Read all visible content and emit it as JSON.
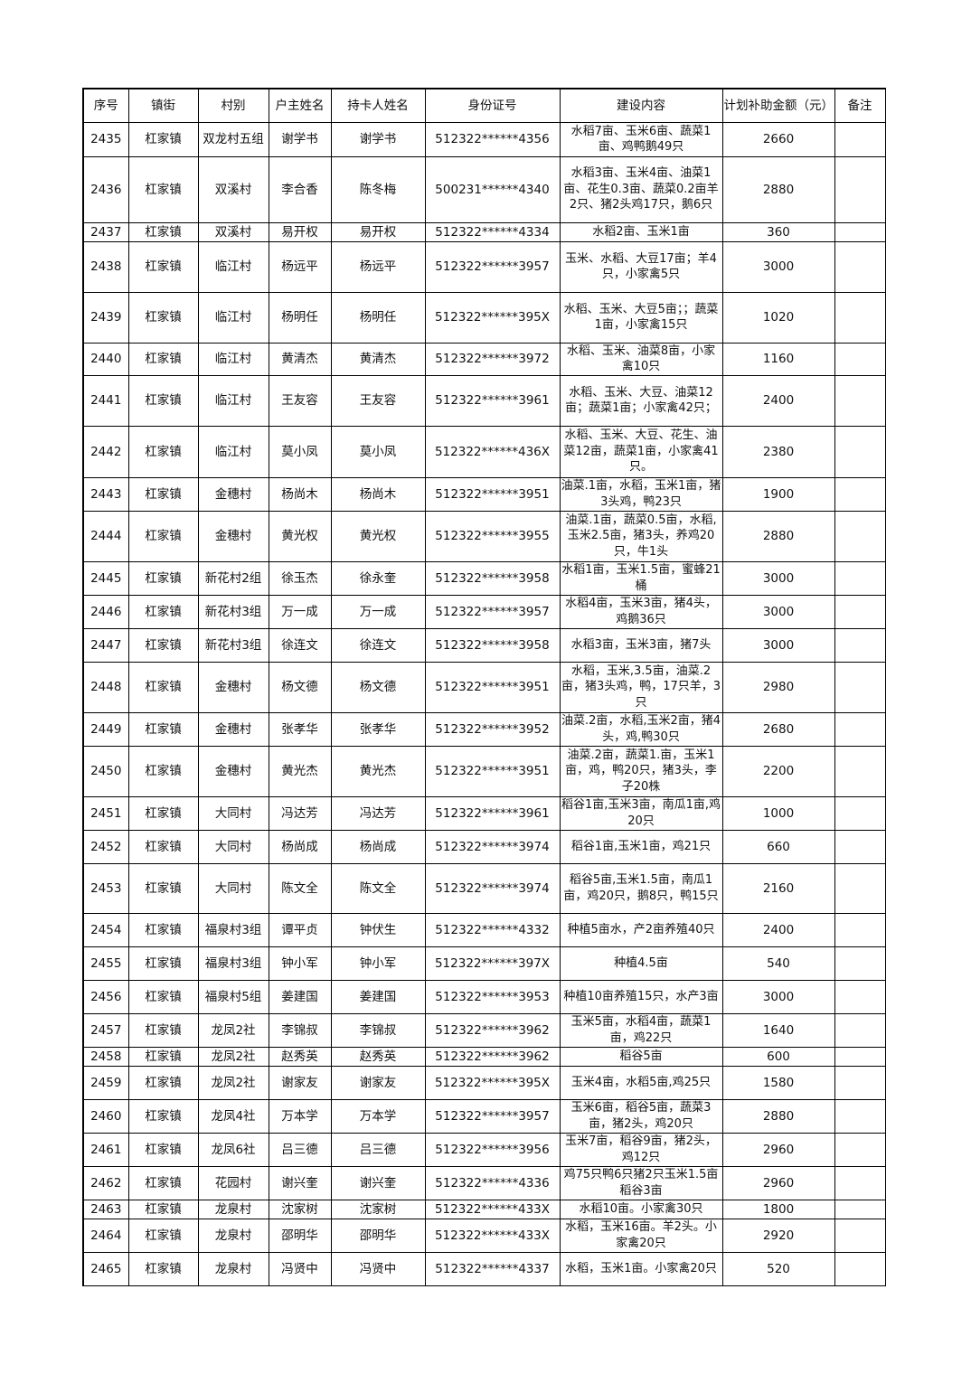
{
  "headers": [
    "序号",
    "镇街",
    "村别",
    "户主姓名",
    "持卡人姓名",
    "身份证号",
    "建设内容",
    "计划补助金额（元）",
    "备注"
  ],
  "rows": [
    [
      "2435",
      "杠家镇",
      "双龙村五组",
      "谢学书",
      "谢学书",
      "512322******4356",
      "水稻7亩、玉米6亩、蔬菜1亩、鸡鸭鹅49只",
      "2660",
      ""
    ],
    [
      "2436",
      "杠家镇",
      "双溪村",
      "李合香",
      "陈冬梅",
      "500231******4340",
      "水稻3亩、玉米4亩、油菜1亩、花生0.3亩、蔬菜0.2亩羊2只、猪2头鸡17只，鹅6只",
      "2880",
      ""
    ],
    [
      "2437",
      "杠家镇",
      "双溪村",
      "易开权",
      "易开权",
      "512322******4334",
      "水稻2亩、玉米1亩",
      "360",
      ""
    ],
    [
      "2438",
      "杠家镇",
      "临江村",
      "杨远平",
      "杨远平",
      "512322******3957",
      "玉米、水稻、大豆17亩；羊4只，小家禽5只",
      "3000",
      ""
    ],
    [
      "2439",
      "杠家镇",
      "临江村",
      "杨明任",
      "杨明任",
      "512322******395X",
      "水稻、玉米、大豆5亩；；蔬菜1亩，小家禽15只",
      "1020",
      ""
    ],
    [
      "2440",
      "杠家镇",
      "临江村",
      "黄清杰",
      "黄清杰",
      "512322******3972",
      "水稻、玉米、油菜8亩，小家禽10只",
      "1160",
      ""
    ],
    [
      "2441",
      "杠家镇",
      "临江村",
      "王友容",
      "王友容",
      "512322******3961",
      "水稻、玉米、大豆、油菜12亩；蔬菜1亩；小家禽42只；",
      "2400",
      ""
    ],
    [
      "2442",
      "杠家镇",
      "临江村",
      "莫小凤",
      "莫小凤",
      "512322******436X",
      "水稻、玉米、大豆、花生、油菜12亩，蔬菜1亩，小家禽41只。",
      "2380",
      ""
    ],
    [
      "2443",
      "杠家镇",
      "金穗村",
      "杨尚木",
      "杨尚木",
      "512322******3951",
      "油菜.1亩，水稻，玉米1亩，猪3头鸡，鸭23只",
      "1900",
      ""
    ],
    [
      "2444",
      "杠家镇",
      "金穗村",
      "黄光权",
      "黄光权",
      "512322******3955",
      "油菜.1亩，蔬菜0.5亩，水稻,玉米2.5亩，猪3头，养鸡20只，牛1头",
      "2880",
      ""
    ],
    [
      "2445",
      "杠家镇",
      "新花村2组",
      "徐玉杰",
      "徐永奎",
      "512322******3958",
      "水稻1亩，玉米1.5亩，蜜蜂21桶",
      "3000",
      ""
    ],
    [
      "2446",
      "杠家镇",
      "新花村3组",
      "万一成",
      "万一成",
      "512322******3957",
      "水稻4亩，玉米3亩，猪4头，鸡鹅36只",
      "3000",
      ""
    ],
    [
      "2447",
      "杠家镇",
      "新花村3组",
      "徐连文",
      "徐连文",
      "512322******3958",
      "水稻3亩，玉米3亩，猪7头",
      "3000",
      ""
    ],
    [
      "2448",
      "杠家镇",
      "金穗村",
      "杨文德",
      "杨文德",
      "512322******3951",
      "水稻，玉米,3.5亩，油菜.2亩，猪3头鸡，鸭，17只羊，3只",
      "2980",
      ""
    ],
    [
      "2449",
      "杠家镇",
      "金穗村",
      "张孝华",
      "张孝华",
      "512322******3952",
      "油菜.2亩，水稻,玉米2亩，猪4头，鸡,鸭30只",
      "2680",
      ""
    ],
    [
      "2450",
      "杠家镇",
      "金穗村",
      "黄光杰",
      "黄光杰",
      "512322******3951",
      "油菜.2亩，蔬菜1.亩，玉米1亩，鸡，鸭20只，猪3头，李子20株",
      "2200",
      ""
    ],
    [
      "2451",
      "杠家镇",
      "大同村",
      "冯达芳",
      "冯达芳",
      "512322******3961",
      "稻谷1亩,玉米3亩，南瓜1亩,鸡20只",
      "1000",
      ""
    ],
    [
      "2452",
      "杠家镇",
      "大同村",
      "杨尚成",
      "杨尚成",
      "512322******3974",
      "稻谷1亩,玉米1亩，鸡21只",
      "660",
      ""
    ],
    [
      "2453",
      "杠家镇",
      "大同村",
      "陈文全",
      "陈文全",
      "512322******3974",
      "稻谷5亩,玉米1.5亩，南瓜1亩，鸡20只，鹅8只，鸭15只",
      "2160",
      ""
    ],
    [
      "2454",
      "杠家镇",
      "福泉村3组",
      "谭平贞",
      "钟伏生",
      "512322******4332",
      "种植5亩水，产2亩养殖40只",
      "2400",
      ""
    ],
    [
      "2455",
      "杠家镇",
      "福泉村3组",
      "钟小军",
      "钟小军",
      "512322******397X",
      "种植4.5亩",
      "540",
      ""
    ],
    [
      "2456",
      "杠家镇",
      "福泉村5组",
      "姜建国",
      "姜建国",
      "512322******3953",
      "种植10亩养殖15只，水产3亩",
      "3000",
      ""
    ],
    [
      "2457",
      "杠家镇",
      "龙凤2社",
      "李锦叔",
      "李锦叔",
      "512322******3962",
      "玉米5亩，水稻4亩，蔬菜1亩，鸡22只",
      "1640",
      ""
    ],
    [
      "2458",
      "杠家镇",
      "龙凤2社",
      "赵秀英",
      "赵秀英",
      "512322******3962",
      "稻谷5亩",
      "600",
      ""
    ],
    [
      "2459",
      "杠家镇",
      "龙凤2社",
      "谢家友",
      "谢家友",
      "512322******395X",
      "玉米4亩，水稻5亩,鸡25只",
      "1580",
      ""
    ],
    [
      "2460",
      "杠家镇",
      "龙凤4社",
      "万本学",
      "万本学",
      "512322******3957",
      "玉米6亩，稻谷5亩，蔬菜3亩，猪2头，鸡20只",
      "2880",
      ""
    ],
    [
      "2461",
      "杠家镇",
      "龙凤6社",
      "吕三德",
      "吕三德",
      "512322******3956",
      "玉米7亩，稻谷9亩，猪2头，鸡12只",
      "2960",
      ""
    ],
    [
      "2462",
      "杠家镇",
      "花园村",
      "谢兴奎",
      "谢兴奎",
      "512322******4336",
      "鸡75只鸭6只猪2只玉米1.5亩稻谷3亩",
      "2960",
      ""
    ],
    [
      "2463",
      "杠家镇",
      "龙泉村",
      "沈家树",
      "沈家树",
      "512322******433X",
      "水稻10亩。小家禽30只",
      "1800",
      ""
    ],
    [
      "2464",
      "杠家镇",
      "龙泉村",
      "邵明华",
      "邵明华",
      "512322******433X",
      "水稻，玉米16亩。羊2头。小家禽20只",
      "2920",
      ""
    ],
    [
      "2465",
      "杠家镇",
      "龙泉村",
      "冯贤中",
      "冯贤中",
      "512322******4337",
      "水稻，玉米1亩。小家禽20只",
      "520",
      ""
    ]
  ]
}
